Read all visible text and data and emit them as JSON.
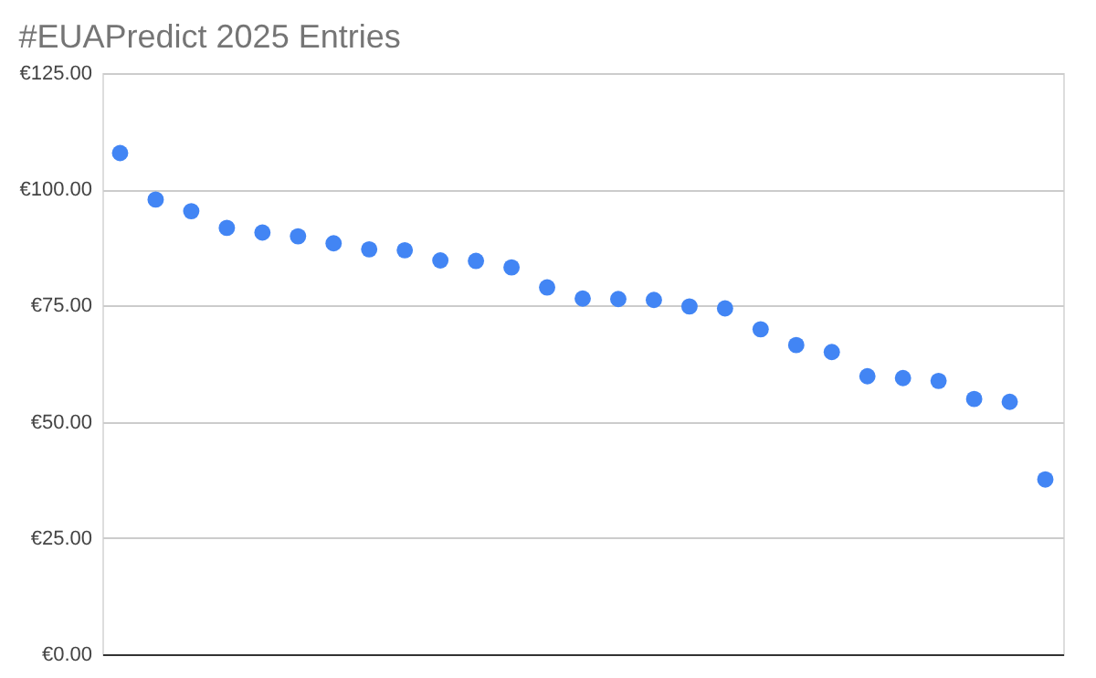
{
  "chart_data": {
    "type": "scatter",
    "title": "#EUAPredict 2025 Entries",
    "categories": [
      null,
      null,
      null,
      null,
      null,
      null,
      null,
      null,
      null,
      null,
      null,
      null,
      null,
      null,
      null,
      null,
      null,
      null,
      null,
      null,
      null,
      null,
      null,
      null,
      null,
      null,
      null
    ],
    "series": [
      {
        "color": "#4285f4",
        "values": [
          107.8,
          97.8,
          95.3,
          91.7,
          90.7,
          89.9,
          88.4,
          87.1,
          86.9,
          84.7,
          84.6,
          83.2,
          78.9,
          76.5,
          76.4,
          76.2,
          74.8,
          74.4,
          69.9,
          66.5,
          65.0,
          59.8,
          59.4,
          58.8,
          54.9,
          54.3,
          37.6
        ]
      }
    ],
    "ylim": [
      0,
      125
    ],
    "yticks": [
      {
        "value": 0,
        "label": "€0.00"
      },
      {
        "value": 25,
        "label": "€25.00"
      },
      {
        "value": 50,
        "label": "€50.00"
      },
      {
        "value": 75,
        "label": "€75.00"
      },
      {
        "value": 100,
        "label": "€100.00"
      },
      {
        "value": 125,
        "label": "€125.00"
      }
    ],
    "grid": "y",
    "marker": "circle",
    "tick_labels": "y"
  }
}
